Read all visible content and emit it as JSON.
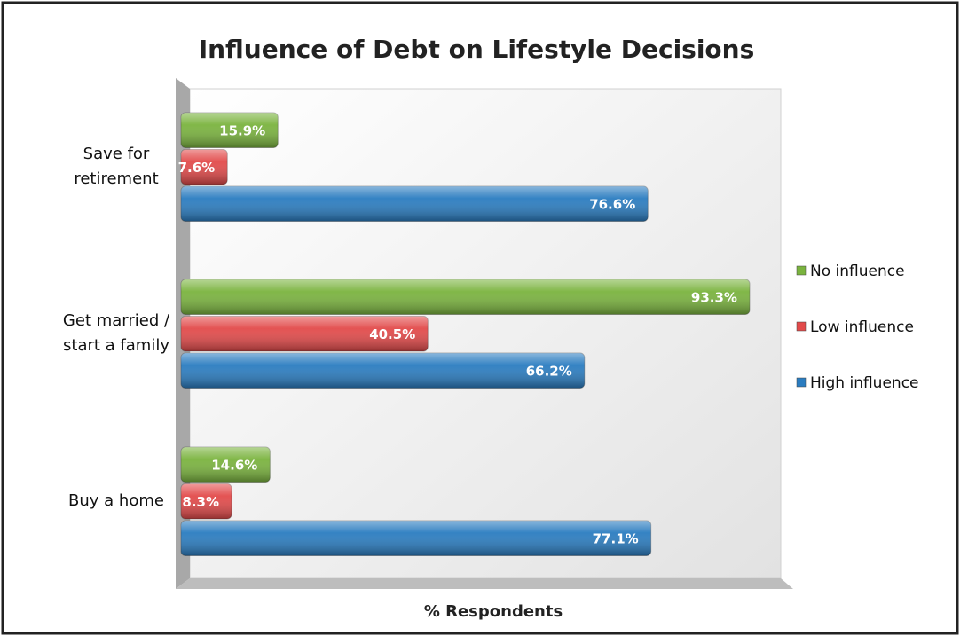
{
  "chart_data": {
    "type": "bar",
    "orientation": "horizontal",
    "title": "Influence of Debt on Lifestyle Decisions",
    "x_label": "% Respondents",
    "categories": [
      "Save for retirement",
      "Get married / start a family",
      "Buy a home"
    ],
    "series": [
      {
        "name": "No influence",
        "color": "#7ab33e",
        "values": [
          15.9,
          93.3,
          14.6
        ],
        "value_labels": [
          "15.9%",
          "93.3%",
          "14.6%"
        ]
      },
      {
        "name": "Low influence",
        "color": "#e24a4a",
        "values": [
          7.6,
          40.5,
          8.3
        ],
        "value_labels": [
          "7.6%",
          "40.5%",
          "8.3%"
        ]
      },
      {
        "name": "High influence",
        "color": "#2a7cc0",
        "values": [
          76.6,
          66.2,
          77.1
        ],
        "value_labels": [
          "76.6%",
          "66.2%",
          "77.1%"
        ]
      }
    ],
    "xlim": [
      0,
      100
    ],
    "legend": "right"
  }
}
